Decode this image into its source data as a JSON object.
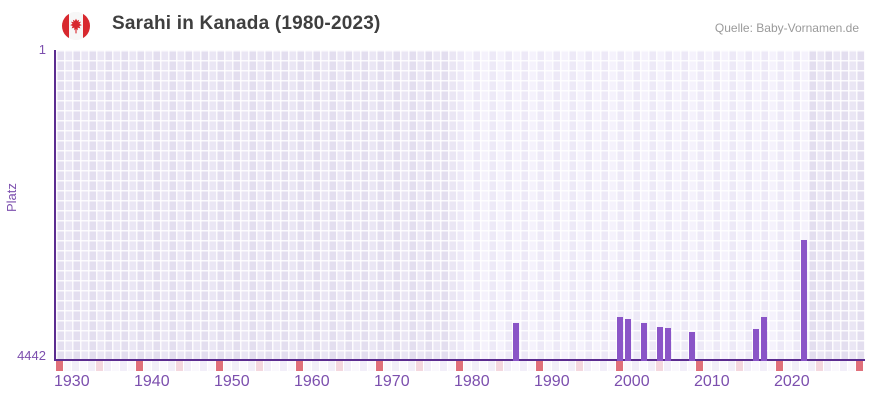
{
  "header": {
    "title": "Sarahi in Kanada (1980-2023)",
    "source": "Quelle: Baby-Vornamen.de",
    "flag_icon": "canada-flag-icon"
  },
  "chart_data": {
    "type": "bar",
    "title": "Sarahi in Kanada (1980-2023)",
    "ylabel": "Platz",
    "y_axis": {
      "top_tick_label": "1",
      "bottom_tick_label": "4442",
      "min": 1,
      "max": 4442,
      "inverted": true
    },
    "x_axis": {
      "start_year": 1930,
      "end_year": 2030,
      "tick_labels": [
        "1930",
        "1940",
        "1950",
        "1960",
        "1970",
        "1980",
        "1990",
        "2000",
        "2010",
        "2020"
      ]
    },
    "highlight_range": {
      "start": 1980,
      "end": 2023
    },
    "points": [
      {
        "year": 1987,
        "rank": 3920
      },
      {
        "year": 2000,
        "rank": 3835
      },
      {
        "year": 2001,
        "rank": 3867
      },
      {
        "year": 2003,
        "rank": 3924
      },
      {
        "year": 2005,
        "rank": 3982
      },
      {
        "year": 2006,
        "rank": 4000
      },
      {
        "year": 2009,
        "rank": 4054
      },
      {
        "year": 2017,
        "rank": 4011
      },
      {
        "year": 2018,
        "rank": 3835
      },
      {
        "year": 2023,
        "rank": 2736
      }
    ]
  },
  "colors": {
    "bar": "#8a55c7",
    "axis_line": "#5b2c90",
    "tick_text": "#7c4fae",
    "title_text": "#3f3f3f",
    "source_text": "#9a9a9a",
    "flag_red": "#d8292f",
    "flag_white": "#f7f7f7",
    "cell_dark_a": "#e3deef",
    "cell_dark_b": "#eae6f4",
    "cell_light_a": "#ede9f7",
    "cell_light_b": "#f5f2fc",
    "grid_line": "rgba(255,255,255,0.85)",
    "strip_decade": "#e0707b",
    "strip_half_decade": "#f4d7de",
    "strip_plain_a": "#f2eef9",
    "strip_plain_b": "#faf8fd"
  }
}
